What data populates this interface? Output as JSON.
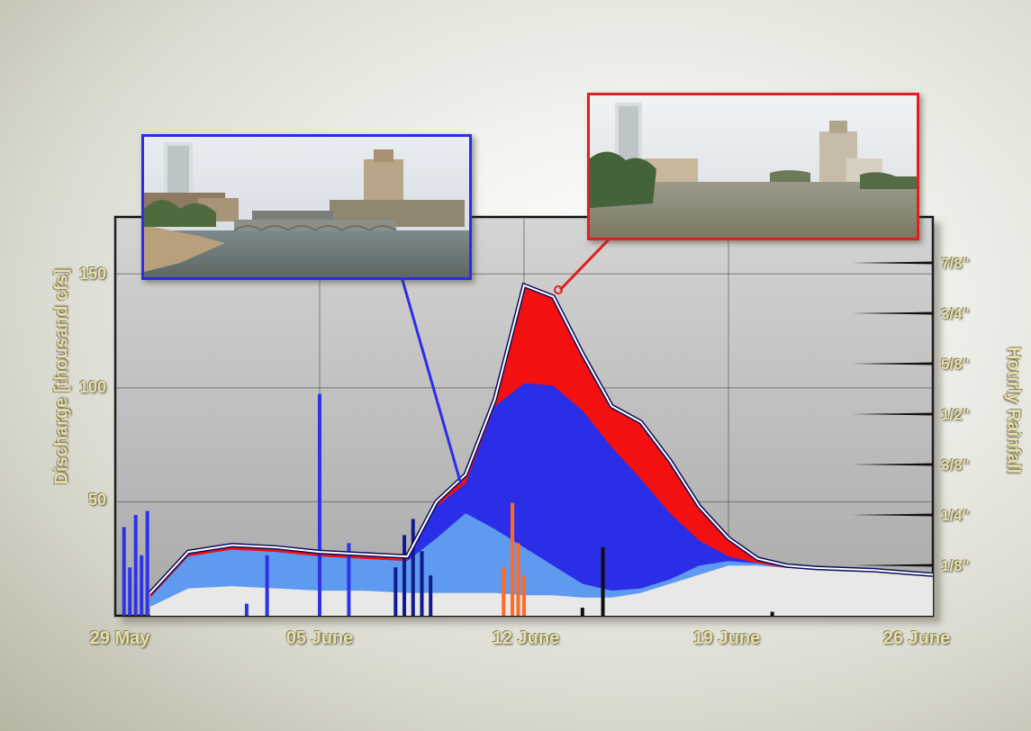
{
  "chart_data": {
    "type": "area",
    "ylabel": "Discharge [thousand cfs]",
    "y2label": "Hourly Rainfall",
    "ylim": [
      0,
      175
    ],
    "yticks": [
      50,
      100,
      150
    ],
    "y2ticks": [
      "1/8\"",
      "1/4\"",
      "3/8\"",
      "1/2\"",
      "5/8\"",
      "3/4\"",
      "7/8\""
    ],
    "y2lim": [
      0,
      1
    ],
    "xticks": [
      "29 May",
      "05 June",
      "12 June",
      "19 June",
      "26 June"
    ],
    "xlim_days": [
      0,
      28
    ],
    "grid": true,
    "total_discharge": {
      "x": [
        1.2,
        2.5,
        4,
        5.5,
        7,
        8.5,
        10,
        11,
        12,
        13,
        14,
        15,
        16,
        17,
        18,
        19,
        20,
        21,
        22,
        23,
        24,
        26,
        28
      ],
      "values": [
        10,
        28,
        31,
        30,
        28,
        27,
        26,
        50,
        62,
        95,
        145,
        140,
        115,
        92,
        85,
        68,
        48,
        34,
        25,
        22,
        21,
        20,
        18
      ]
    },
    "series": [
      {
        "values": [
          0,
          0,
          0,
          0,
          0,
          0,
          0,
          0,
          0,
          0,
          0,
          0,
          0,
          0,
          0,
          0,
          0,
          0,
          0,
          0,
          0,
          0,
          0
        ],
        "color": "#e8e8e8"
      },
      {
        "values": [
          8,
          26,
          29,
          28,
          26,
          25,
          24,
          34,
          45,
          38,
          30,
          22,
          14,
          11,
          12,
          16,
          22,
          24,
          23,
          21,
          21,
          20,
          18
        ],
        "color": "#5d9af0"
      },
      {
        "values": [
          8,
          26,
          29,
          28,
          26,
          25,
          24,
          48,
          58,
          92,
          102,
          101,
          90,
          74,
          60,
          45,
          33,
          26,
          23,
          21,
          21,
          20,
          18
        ],
        "color": "#2a2ee6"
      },
      {
        "values": [
          10,
          28,
          31,
          30,
          28,
          27,
          26,
          50,
          62,
          95,
          145,
          140,
          115,
          92,
          85,
          68,
          48,
          34,
          25,
          22,
          21,
          20,
          18
        ],
        "color": "#f21010"
      }
    ],
    "rainfall_colors": [
      "#2f33e8",
      "#101a8e",
      "#ff6a24",
      "#101010"
    ],
    "colors": {
      "frame": "#111111",
      "plot_bg": "#c9c9c9",
      "label": "#e8e0a8",
      "photo_left_border": "#2a2ee6",
      "photo_right_border": "#e02020"
    }
  }
}
